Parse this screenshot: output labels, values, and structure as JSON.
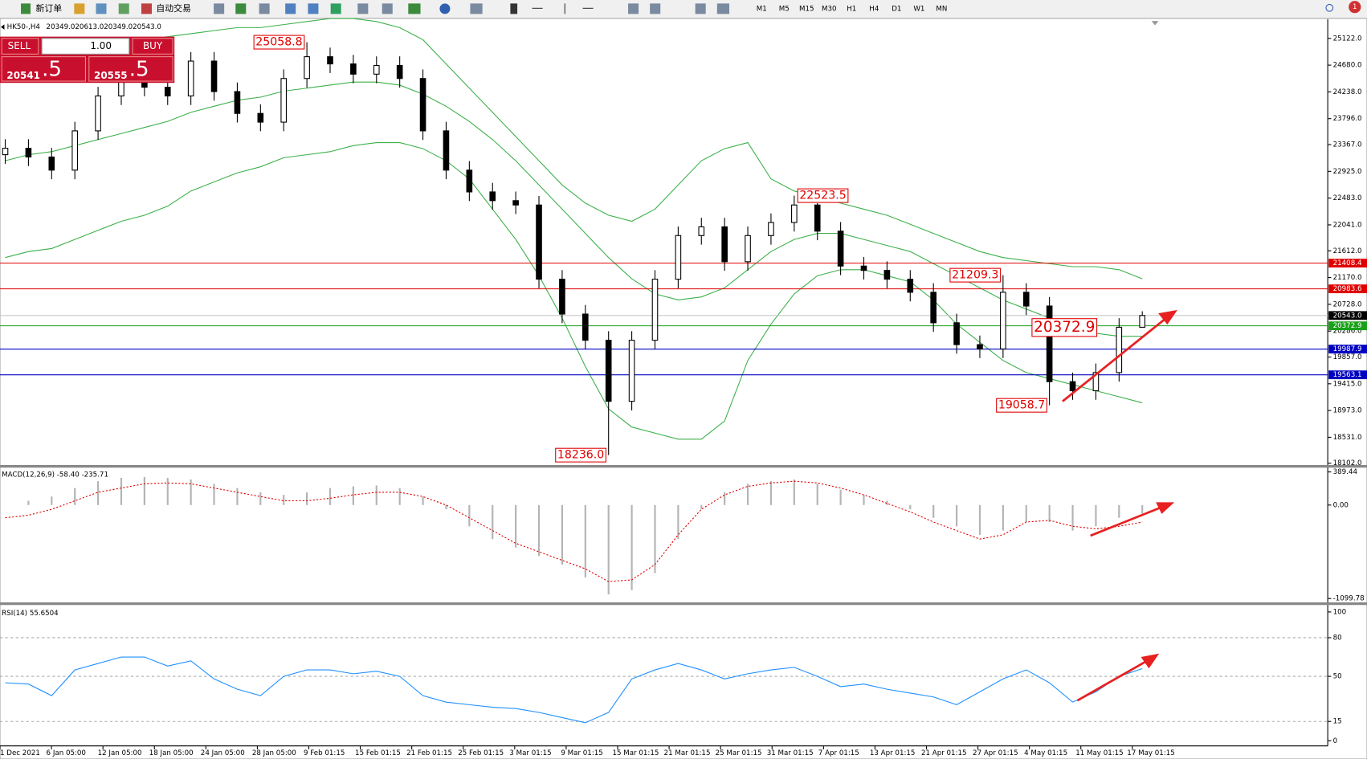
{
  "toolbar": {
    "new_order": "新订单",
    "auto_trading": "自动交易",
    "timeframes": [
      "M1",
      "M5",
      "M15",
      "M30",
      "H1",
      "H4",
      "D1",
      "W1",
      "MN"
    ],
    "notifications": "1"
  },
  "header": {
    "symbol": "HK50-,H4",
    "ohlc": [
      "20349.0",
      "20613.0",
      "20349.0",
      "20543.0"
    ]
  },
  "trade_panel": {
    "sell": "SELL",
    "buy": "BUY",
    "volume": "1.00",
    "bid_main": "20541",
    "bid_tail": ".5",
    "ask_main": "20555",
    "ask_tail": ".5"
  },
  "time_labels": [
    "1 Dec 2021",
    "6 Jan 05:00",
    "12 Jan 05:00",
    "18 Jan 05:00",
    "24 Jan 05:00",
    "28 Jan 05:00",
    "9 Feb 01:15",
    "15 Feb 01:15",
    "21 Feb 01:15",
    "25 Feb 01:15",
    "3 Mar 01:15",
    "9 Mar 01:15",
    "15 Mar 01:15",
    "21 Mar 01:15",
    "25 Mar 01:15",
    "31 Mar 01:15",
    "7 Apr 01:15",
    "13 Apr 01:15",
    "21 Apr 01:15",
    "27 Apr 01:15",
    "4 May 01:15",
    "11 May 01:15",
    "17 May 01:15"
  ],
  "chart_data": [
    {
      "type": "candlestick",
      "ylim": [
        18073,
        25439
      ],
      "yticks": [
        {
          "value": 25122,
          "label": "25122.0"
        },
        {
          "value": 24680,
          "label": "24680.0"
        },
        {
          "value": 24238,
          "label": "24238.0"
        },
        {
          "value": 23796,
          "label": "23796.0"
        },
        {
          "value": 23367,
          "label": "23367.0"
        },
        {
          "value": 22925,
          "label": "22925.0"
        },
        {
          "value": 22483,
          "label": "22483.0"
        },
        {
          "value": 22041,
          "label": "22041.0"
        },
        {
          "value": 21612,
          "label": "21612.0"
        },
        {
          "value": 21170,
          "label": "21170.0"
        },
        {
          "value": 20728,
          "label": "20728.0"
        },
        {
          "value": 20286,
          "label": "20286.0"
        },
        {
          "value": 19857,
          "label": "19857.0"
        },
        {
          "value": 19415,
          "label": "19415.0"
        },
        {
          "value": 18973,
          "label": "18973.0"
        },
        {
          "value": 18531,
          "label": "18531.0"
        },
        {
          "value": 18102,
          "label": "18102.0"
        }
      ],
      "open": [
        23200,
        23306,
        23162,
        22945,
        23594,
        24171,
        24531,
        24315,
        24171,
        24747,
        24243,
        23882,
        23738,
        24459,
        24819,
        24700,
        24531,
        24675,
        24459,
        23594,
        22945,
        22585,
        22441,
        22369,
        21143,
        20567,
        20134,
        19125,
        20134,
        21143,
        21864,
        22008,
        21432,
        21864,
        22080,
        22369,
        21937,
        21360,
        21288,
        21143,
        20927,
        20423,
        20062,
        19990,
        20927,
        20700,
        19450,
        19300,
        19600,
        20349
      ],
      "high": [
        23456,
        23456,
        23312,
        23744,
        24321,
        24681,
        24681,
        24465,
        24897,
        24897,
        24393,
        24032,
        24609,
        25058.8,
        24969,
        24850,
        24825,
        24825,
        24609,
        23744,
        23095,
        22735,
        22591,
        22519,
        21293,
        20717,
        20284,
        20284,
        21293,
        22014,
        22158,
        22158,
        22014,
        22230,
        22523.5,
        22400,
        22087,
        21510,
        21438,
        21293,
        21077,
        20573,
        20212,
        21209.3,
        21077,
        20850,
        19600,
        19750,
        20499,
        20613
      ],
      "low": [
        23050,
        23012,
        22795,
        22795,
        23444,
        24021,
        24165,
        24021,
        24021,
        24093,
        23732,
        23588,
        23588,
        24309,
        24550,
        24381,
        24381,
        24309,
        23444,
        22795,
        22435,
        22291,
        22219,
        20993,
        20417,
        19984,
        18236,
        18975,
        19984,
        20993,
        21714,
        21282,
        21282,
        21714,
        21930,
        21787,
        21210,
        21138,
        20993,
        20777,
        20273,
        19912,
        19840,
        19840,
        20550,
        19058.7,
        19150,
        19150,
        19450,
        20349
      ],
      "close": [
        23306,
        23162,
        22945,
        23594,
        24171,
        24531,
        24315,
        24171,
        24747,
        24243,
        23882,
        23738,
        24459,
        24819,
        24700,
        24531,
        24675,
        24459,
        23594,
        22945,
        22585,
        22441,
        22369,
        21143,
        20567,
        20134,
        19125,
        20134,
        21143,
        21864,
        22008,
        21432,
        21864,
        22080,
        22369,
        21937,
        21360,
        21288,
        21143,
        20927,
        20423,
        20062,
        19990,
        20927,
        20700,
        19450,
        19300,
        19600,
        20349,
        20543
      ],
      "upper": [
        24700,
        24800,
        24850,
        24900,
        24950,
        25000,
        25100,
        25150,
        25200,
        25250,
        25300,
        25300,
        25350,
        25400,
        25450,
        25450,
        25400,
        25300,
        25100,
        24700,
        24300,
        23900,
        23500,
        23100,
        22700,
        22400,
        22200,
        22100,
        22300,
        22700,
        23100,
        23300,
        23400,
        22800,
        22600,
        22500,
        22400,
        22300,
        22200,
        22050,
        21900,
        21750,
        21600,
        21500,
        21450,
        21400,
        21350,
        21350,
        21300,
        21150
      ],
      "middle": [
        23100,
        23200,
        23250,
        23350,
        23450,
        23550,
        23650,
        23750,
        23900,
        24000,
        24100,
        24150,
        24250,
        24300,
        24350,
        24400,
        24400,
        24350,
        24200,
        24000,
        23750,
        23450,
        23100,
        22700,
        22300,
        21900,
        21500,
        21150,
        20900,
        20800,
        20850,
        21000,
        21300,
        21600,
        21800,
        21900,
        21900,
        21800,
        21700,
        21600,
        21400,
        21200,
        21000,
        20800,
        20650,
        20500,
        20350,
        20250,
        20200,
        20200
      ],
      "lower": [
        21500,
        21600,
        21650,
        21800,
        21950,
        22100,
        22200,
        22350,
        22600,
        22750,
        22900,
        23000,
        23150,
        23200,
        23250,
        23350,
        23400,
        23400,
        23300,
        23100,
        22800,
        22300,
        21800,
        21200,
        20500,
        19700,
        19000,
        18700,
        18600,
        18500,
        18500,
        18800,
        19800,
        20400,
        20900,
        21200,
        21300,
        21300,
        21200,
        21100,
        20800,
        20400,
        20100,
        19800,
        19600,
        19500,
        19400,
        19300,
        19200,
        19100
      ],
      "band_color": "#3cb04a",
      "hlines": [
        {
          "value": 21408.4,
          "color": "#e00000"
        },
        {
          "value": 20983.6,
          "color": "#e00000"
        },
        {
          "value": 20543,
          "label": "20543.0",
          "color": "#c8c8c8",
          "tag_color": "#000000"
        },
        {
          "value": 20372.9,
          "color": "#18a018"
        },
        {
          "value": 19987.9,
          "color": "#0000c0"
        },
        {
          "value": 19563.1,
          "color": "#0000c0"
        }
      ],
      "annotations": [
        {
          "x": 13,
          "value": 25058.8
        },
        {
          "x": 34,
          "value": 22523.5
        },
        {
          "x": 26,
          "value": 18236,
          "label": "18236.0"
        },
        {
          "x": 43,
          "value": 21209.3
        },
        {
          "x": 45,
          "value": 20372.9
        },
        {
          "x": 45,
          "value": 19058.7
        }
      ]
    },
    {
      "type": "macd",
      "title": "MACD(12,26,9) -58.40 -235.71",
      "ylim": [
        -1140,
        430
      ],
      "yticks": [
        389.44,
        {
          "value": 0,
          "label": "0.00"
        },
        -1099.78
      ],
      "histogram": [
        0,
        50,
        100,
        200,
        280,
        320,
        330,
        320,
        300,
        250,
        200,
        150,
        120,
        150,
        200,
        220,
        230,
        200,
        100,
        -50,
        -250,
        -400,
        -500,
        -600,
        -700,
        -850,
        -1050,
        -1000,
        -800,
        -400,
        -50,
        150,
        250,
        280,
        300,
        250,
        180,
        120,
        50,
        -50,
        -150,
        -250,
        -350,
        -300,
        -200,
        -200,
        -300,
        -250,
        -150,
        -100
      ],
      "signal": [
        -150,
        -120,
        -50,
        50,
        150,
        200,
        250,
        260,
        250,
        200,
        150,
        100,
        50,
        50,
        80,
        120,
        150,
        150,
        100,
        0,
        -150,
        -300,
        -450,
        -550,
        -650,
        -750,
        -900,
        -880,
        -700,
        -350,
        -50,
        120,
        220,
        260,
        280,
        260,
        200,
        120,
        20,
        -80,
        -200,
        -300,
        -400,
        -350,
        -200,
        -180,
        -250,
        -280,
        -250,
        -200
      ]
    },
    {
      "type": "rsi",
      "title": "RSI(14) 55.6504",
      "ylim": [
        -4,
        103
      ],
      "yticks": [
        100,
        80,
        50,
        15,
        0
      ],
      "levels": [
        80,
        50,
        15
      ],
      "values": [
        45,
        44,
        35,
        55,
        60,
        65,
        65,
        58,
        62,
        48,
        40,
        35,
        50,
        55,
        55,
        52,
        54,
        50,
        35,
        30,
        28,
        26,
        25,
        22,
        18,
        14,
        22,
        48,
        55,
        60,
        55,
        48,
        52,
        55,
        57,
        50,
        42,
        44,
        40,
        37,
        34,
        28,
        38,
        48,
        55,
        45,
        30,
        38,
        50,
        56
      ],
      "color": "#1e90ff"
    }
  ]
}
